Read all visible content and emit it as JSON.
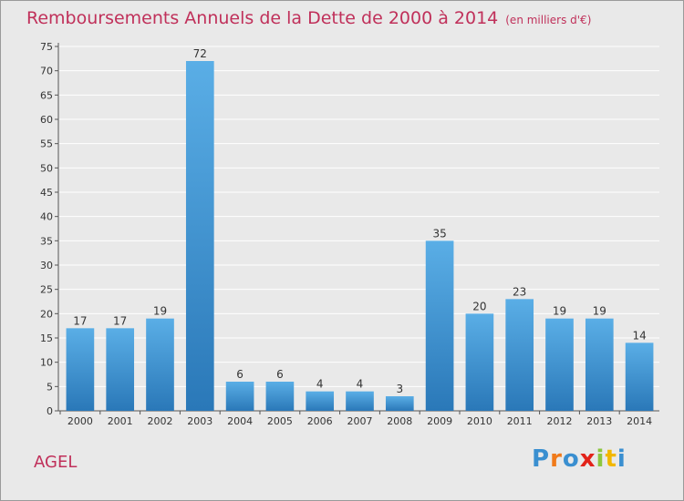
{
  "title": "Remboursements Annuels de la Dette de 2000 à 2014",
  "subtitle": "(en milliers d'€)",
  "commune": "AGEL",
  "logo_text": "Proxiti",
  "colors": {
    "title": "#c0305a",
    "bar_top": "#5aaee6",
    "bar_bottom": "#2a78b8",
    "background": "#e9e9e9",
    "grid": "#ffffff",
    "logo": [
      "#3a8fd0",
      "#f07a1a",
      "#3a8fd0",
      "#e2231a",
      "#8dc63f",
      "#f2b700",
      "#3a8fd0"
    ]
  },
  "chart_data": {
    "type": "bar",
    "title": "Remboursements Annuels de la Dette de 2000 à 2014",
    "subtitle": "(en milliers d'€)",
    "xlabel": "",
    "ylabel": "",
    "categories": [
      "2000",
      "2001",
      "2002",
      "2003",
      "2004",
      "2005",
      "2006",
      "2007",
      "2008",
      "2009",
      "2010",
      "2011",
      "2012",
      "2013",
      "2014"
    ],
    "values": [
      17,
      17,
      19,
      72,
      6,
      6,
      4,
      4,
      3,
      35,
      20,
      23,
      19,
      19,
      14
    ],
    "ylim": [
      0,
      75
    ],
    "yticks": [
      0,
      5,
      10,
      15,
      20,
      25,
      30,
      35,
      40,
      45,
      50,
      55,
      60,
      65,
      70,
      75
    ],
    "grid": true,
    "legend": "none",
    "data_labels": true
  }
}
